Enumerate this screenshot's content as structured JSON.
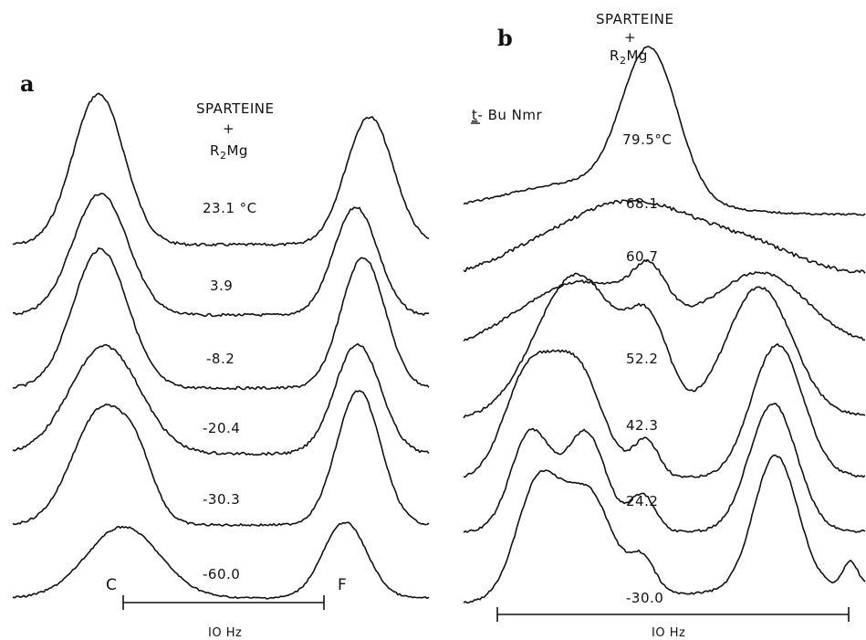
{
  "panel_a": {
    "letter": "a",
    "reagent_top": "SPARTEINE",
    "reagent_plus": "+",
    "reagent_bottom": "R",
    "reagent_sub": "2",
    "reagent_tail": "Mg",
    "temps": [
      "23.1 °C",
      "3.9",
      "-8.2",
      "-20.4",
      "-30.3",
      "-60.0"
    ],
    "peak_left": "C",
    "peak_right": "F",
    "scale_label": "IO Hz"
  },
  "panel_b": {
    "letter": "b",
    "reagent_top": "SPARTEINE",
    "reagent_plus": "+",
    "reagent_bottom": "R",
    "reagent_sub": "2",
    "reagent_tail": "Mg",
    "nucleus_t": "t",
    "nucleus_rest": "- Bu Nmr",
    "temps": [
      "79.5°C",
      "68.1",
      "60.7",
      "52.2",
      "42.3",
      "24.2",
      "-30.0"
    ],
    "scale_label": "IO Hz"
  }
}
